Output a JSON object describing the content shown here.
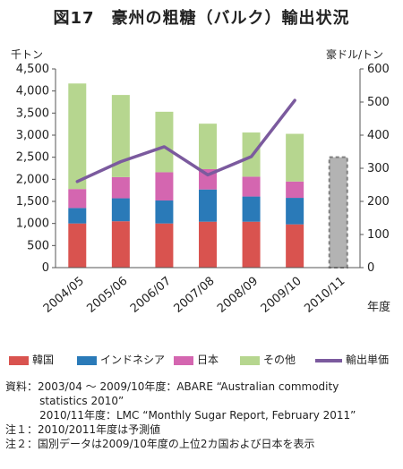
{
  "title": "図17　豪州の粗糖（バルク）輸出状況",
  "units": {
    "left": "千トン",
    "right": "豪ドル/トン",
    "x": "年度"
  },
  "colors": {
    "korea": "#d9534f",
    "indonesia": "#2a7ab8",
    "japan": "#d466b0",
    "other": "#b6d68f",
    "price": "#7b5a9e",
    "forecast_fill": "#b3b3b3",
    "forecast_border": "#7f7f7f",
    "axis": "#555555"
  },
  "chart_data": {
    "type": "bar",
    "stacked": true,
    "title": "図17　豪州の粗糖（バルク）輸出状況",
    "categories": [
      "2004/05",
      "2005/06",
      "2006/07",
      "2007/08",
      "2008/09",
      "2009/10",
      "2010/11"
    ],
    "series": [
      {
        "name": "韓国",
        "values": [
          1000,
          1050,
          1000,
          1040,
          1040,
          980,
          null
        ]
      },
      {
        "name": "インドネシア",
        "values": [
          350,
          520,
          520,
          730,
          570,
          600,
          null
        ]
      },
      {
        "name": "日本",
        "values": [
          430,
          480,
          640,
          460,
          450,
          370,
          null
        ]
      },
      {
        "name": "その他",
        "values": [
          2390,
          1860,
          1370,
          1030,
          1000,
          1080,
          null
        ]
      }
    ],
    "forecast": {
      "category": "2010/11",
      "value": 2500
    },
    "line_series": {
      "name": "輸出単価",
      "axis": "right",
      "values": [
        260,
        320,
        365,
        280,
        335,
        505,
        null
      ]
    },
    "ylabel": "千トン",
    "y2label": "豪ドル/トン",
    "xlabel": "年度",
    "ylim": [
      0,
      4500
    ],
    "y2lim": [
      0,
      600
    ],
    "yticks": [
      "0",
      "500",
      "1,000",
      "1,500",
      "2,000",
      "2,500",
      "3,000",
      "3,500",
      "4,000",
      "4,500"
    ],
    "y2ticks": [
      "0",
      "100",
      "200",
      "300",
      "400",
      "500",
      "600"
    ],
    "legend_position": "bottom"
  },
  "legend": {
    "korea": "韓国",
    "indonesia": "インドネシア",
    "japan": "日本",
    "other": "その他",
    "price": "輸出単価"
  },
  "notes": [
    "資料：2003/04 ～ 2009/10年度：ABARE “Australian commodity",
    "          statistics 2010”",
    "          2010/11年度：LMC “Monthly Sugar Report, February 2011”",
    "注１：2010/2011年度は予測値",
    "注２：国別データは2009/10年度の上位2カ国および日本を表示"
  ]
}
